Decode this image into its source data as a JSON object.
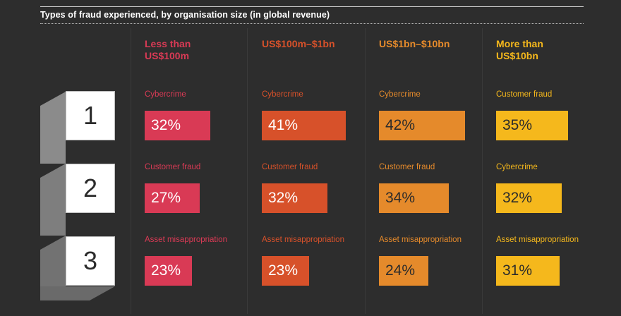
{
  "title": "Types of fraud experienced, by organisation size (in global revenue)",
  "ranks": [
    "1",
    "2",
    "3"
  ],
  "colors": {
    "background": "#2d2d2d",
    "col1": "#d93a55",
    "col2": "#d7512a",
    "col3": "#e58a2b",
    "col4": "#f5b81c"
  },
  "chart_data": {
    "type": "table",
    "title": "Types of fraud experienced, by organisation size (in global revenue)",
    "columns": [
      {
        "header_line1": "Less than",
        "header_line2": "US$100m",
        "rows": [
          {
            "category": "Cybercrime",
            "value": 32,
            "label": "32%"
          },
          {
            "category": "Customer fraud",
            "value": 27,
            "label": "27%"
          },
          {
            "category": "Asset misappropriation",
            "value": 23,
            "label": "23%"
          }
        ]
      },
      {
        "header_line1": "US$100m–$1bn",
        "header_line2": "",
        "rows": [
          {
            "category": "Cybercrime",
            "value": 41,
            "label": "41%"
          },
          {
            "category": "Customer fraud",
            "value": 32,
            "label": "32%"
          },
          {
            "category": "Asset misappropriation",
            "value": 23,
            "label": "23%"
          }
        ]
      },
      {
        "header_line1": "US$1bn–$10bn",
        "header_line2": "",
        "rows": [
          {
            "category": "Cybercrime",
            "value": 42,
            "label": "42%"
          },
          {
            "category": "Customer fraud",
            "value": 34,
            "label": "34%"
          },
          {
            "category": "Asset misappropriation",
            "value": 24,
            "label": "24%"
          }
        ]
      },
      {
        "header_line1": "More than",
        "header_line2": "US$10bn",
        "rows": [
          {
            "category": "Customer fraud",
            "value": 35,
            "label": "35%"
          },
          {
            "category": "Cybercrime",
            "value": 32,
            "label": "32%"
          },
          {
            "category": "Asset misappropriation",
            "value": 31,
            "label": "31%"
          }
        ]
      }
    ]
  }
}
